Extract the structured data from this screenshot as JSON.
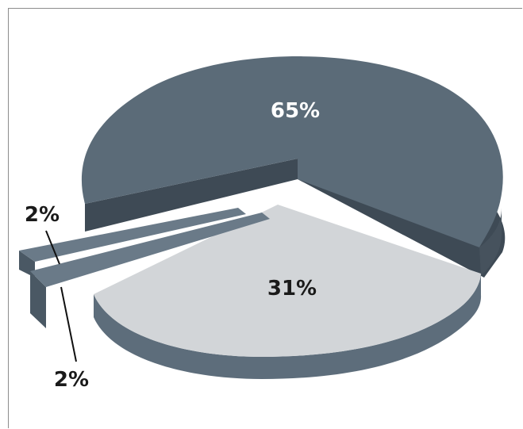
{
  "chart_data": {
    "type": "pie",
    "categories": [
      "",
      "",
      "",
      ""
    ],
    "values": [
      65,
      31,
      2,
      2
    ],
    "labels": [
      "65%",
      "31%",
      "2%",
      "2%"
    ],
    "colors": {
      "large_top": "#5b6b78",
      "large_side": "#3e4a55",
      "medium_top": "#d2d5d8",
      "medium_side": "#5d6d7b",
      "small_top": "#6a7a88",
      "small_side": "#4a5864",
      "label_on_dark": "#ffffff",
      "label_on_light": "#1a1a1a"
    }
  }
}
